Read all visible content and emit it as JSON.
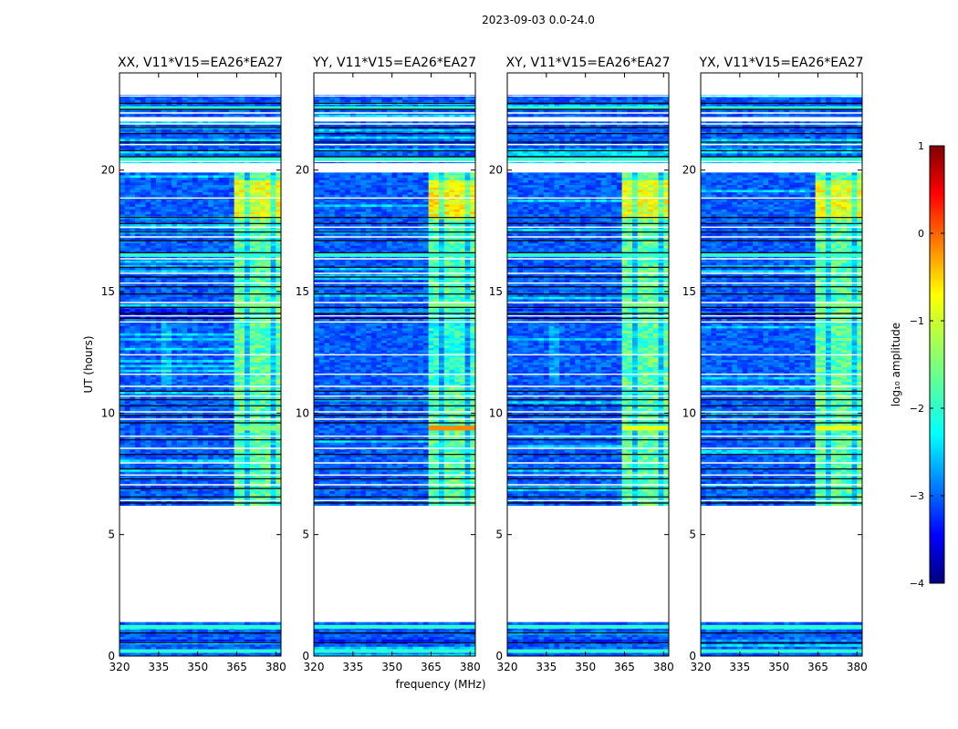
{
  "figure_title": "2023-09-03 0.0-24.0",
  "chart_data": {
    "type": "heatmap",
    "suptitle": "2023-09-03 0.0-24.0",
    "xlabel": "frequency (MHz)",
    "ylabel": "UT (hours)",
    "xlim": [
      320,
      382
    ],
    "ylim": [
      0,
      24
    ],
    "xticks": [
      320,
      335,
      350,
      365,
      380
    ],
    "yticks": [
      0,
      5,
      10,
      15,
      20
    ],
    "panels": [
      {
        "title": "XX, V11*V15=EA26*EA27",
        "pol": "XX"
      },
      {
        "title": "YY, V11*V15=EA26*EA27",
        "pol": "YY"
      },
      {
        "title": "XY, V11*V15=EA26*EA27",
        "pol": "XY"
      },
      {
        "title": "YX, V11*V15=EA26*EA27",
        "pol": "YX"
      }
    ],
    "data_gaps_ut_hours": [
      [
        1.4,
        6.1
      ],
      [
        19.9,
        20.3
      ],
      [
        21.95,
        22.2
      ],
      [
        23.1,
        24.0
      ]
    ],
    "rfi_band_mhz": [
      363,
      381
    ],
    "colorbar": {
      "label": "log₁₀ amplitude",
      "range": [
        -4,
        1
      ],
      "ticks": [
        "1",
        "0",
        "−1",
        "−2",
        "−3",
        "−4"
      ],
      "tick_values": [
        1,
        0,
        -1,
        -2,
        -3,
        -4
      ],
      "colormap": "jet"
    }
  }
}
